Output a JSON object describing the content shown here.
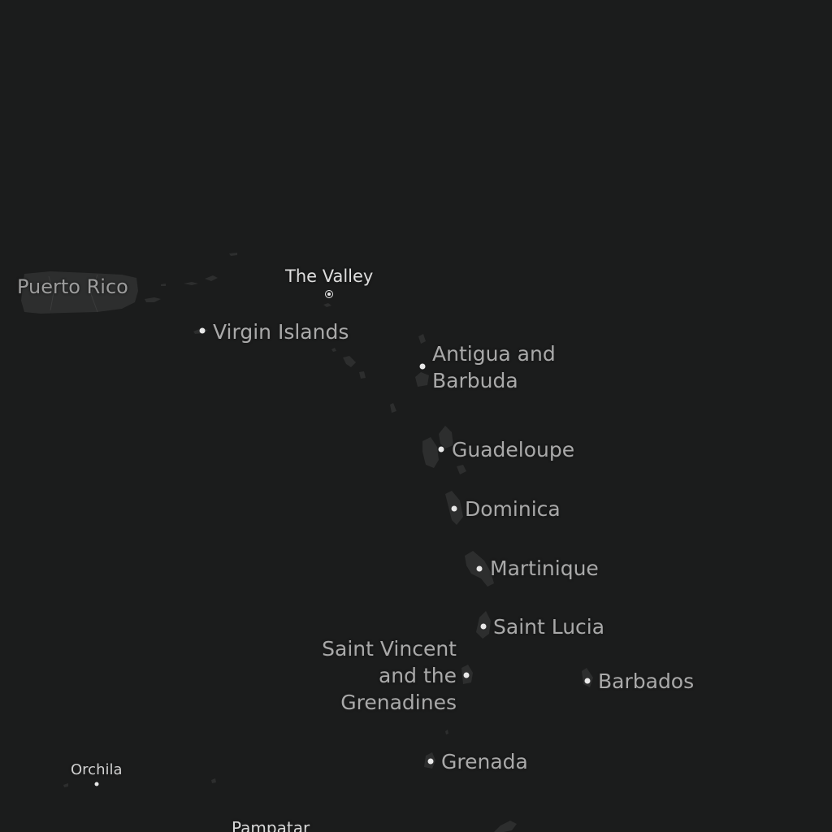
{
  "map": {
    "theme": "dark",
    "colors": {
      "water": "#1b1c1c",
      "land": "#2d2e2e",
      "country_label": "#a9a9a9",
      "city_label": "#dedede",
      "marker": "#e8e8e8"
    }
  },
  "labels": {
    "puerto_rico": "Puerto Rico",
    "the_valley": "The Valley",
    "virgin_islands": "Virgin Islands",
    "antigua_1": "Antigua and",
    "antigua_2": "Barbuda",
    "guadeloupe": "Guadeloupe",
    "dominica": "Dominica",
    "martinique": "Martinique",
    "saint_lucia": "Saint Lucia",
    "svg_1": "Saint Vincent",
    "svg_2": "and the",
    "svg_3": "Grenadines",
    "barbados": "Barbados",
    "grenada": "Grenada",
    "orchila": "Orchila",
    "pampatar": "Pampatar"
  }
}
